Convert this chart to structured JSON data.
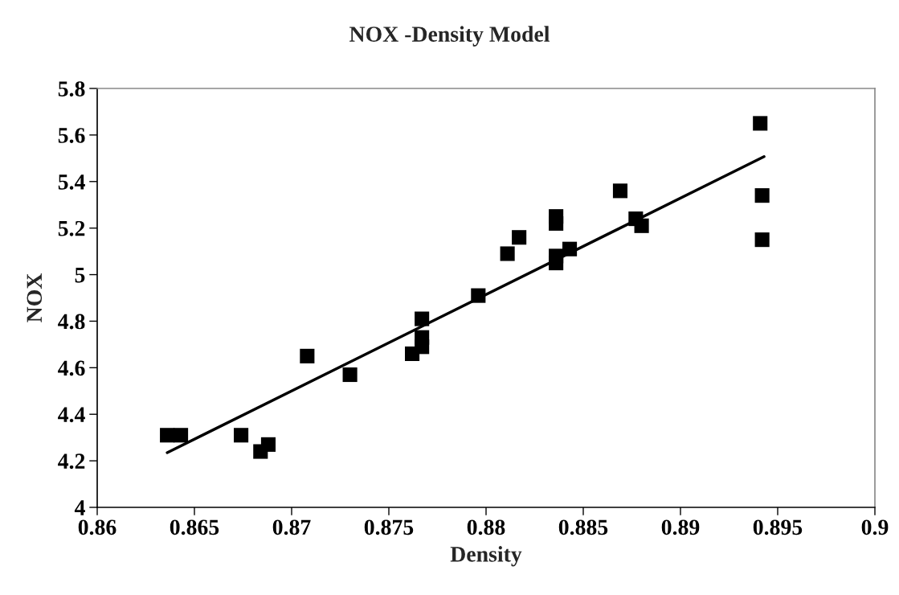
{
  "chart_data": {
    "type": "scatter",
    "title": "NOX -Density Model",
    "xlabel": "Density",
    "ylabel": "NOX",
    "xlim": [
      0.86,
      0.9
    ],
    "ylim": [
      4,
      5.8
    ],
    "xticks": [
      0.86,
      0.865,
      0.87,
      0.875,
      0.88,
      0.885,
      0.89,
      0.895,
      0.9
    ],
    "yticks": [
      4,
      4.2,
      4.4,
      4.6,
      4.8,
      5,
      5.2,
      5.4,
      5.6,
      5.8
    ],
    "grid": false,
    "marker": "square",
    "series": [
      {
        "color": "#000000",
        "x": [
          0.8636,
          0.8643,
          0.8674,
          0.8684,
          0.8688,
          0.8708,
          0.873,
          0.8762,
          0.8767,
          0.8767,
          0.8767,
          0.8796,
          0.8811,
          0.8817,
          0.8836,
          0.8836,
          0.8836,
          0.8836,
          0.8843,
          0.8869,
          0.8877,
          0.888,
          0.8941,
          0.8942,
          0.8942
        ],
        "values": [
          4.31,
          4.31,
          4.31,
          4.24,
          4.27,
          4.65,
          4.57,
          4.66,
          4.69,
          4.73,
          4.81,
          4.91,
          5.09,
          5.16,
          5.25,
          5.22,
          5.08,
          5.05,
          5.11,
          5.36,
          5.24,
          5.21,
          5.65,
          5.34,
          5.15
        ]
      },
      {
        "type": "line",
        "color": "#000000",
        "x": [
          0.8636,
          0.8943
        ],
        "values": [
          4.235,
          5.507
        ],
        "marker": "none",
        "line_style": "solid"
      }
    ]
  }
}
